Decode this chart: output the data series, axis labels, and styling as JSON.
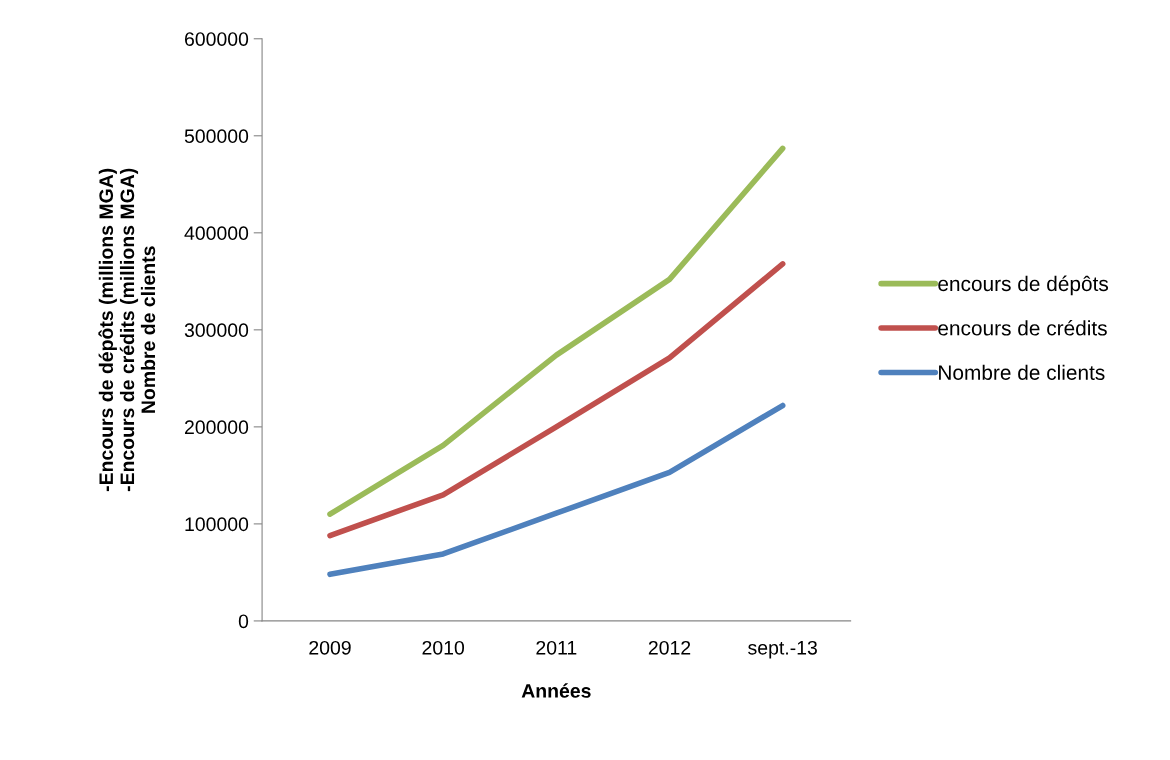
{
  "chart_data": {
    "type": "line",
    "xlabel": "Années",
    "ylabel": "-Encours de dépôts (millions MGA)\n-Encours de crédits (millions MGA)\nNombre de clients",
    "categories": [
      "2009",
      "2010",
      "2011",
      "2012",
      "sept.-13"
    ],
    "series": [
      {
        "name": "encours de dépôts",
        "color": "#9bbb59",
        "values": [
          110000,
          181000,
          274000,
          352000,
          487000
        ]
      },
      {
        "name": "encours de crédits",
        "color": "#c0504d",
        "values": [
          88000,
          130000,
          200000,
          271000,
          368000
        ]
      },
      {
        "name": "Nombre de clients",
        "color": "#4f81bd",
        "values": [
          48000,
          69000,
          111000,
          153000,
          222000
        ]
      }
    ],
    "ylim": [
      0,
      600000
    ],
    "yticks": [
      0,
      100000,
      200000,
      300000,
      400000,
      500000,
      600000
    ],
    "grid": false,
    "legend": "right",
    "marker": "none",
    "line_style": "solid"
  }
}
